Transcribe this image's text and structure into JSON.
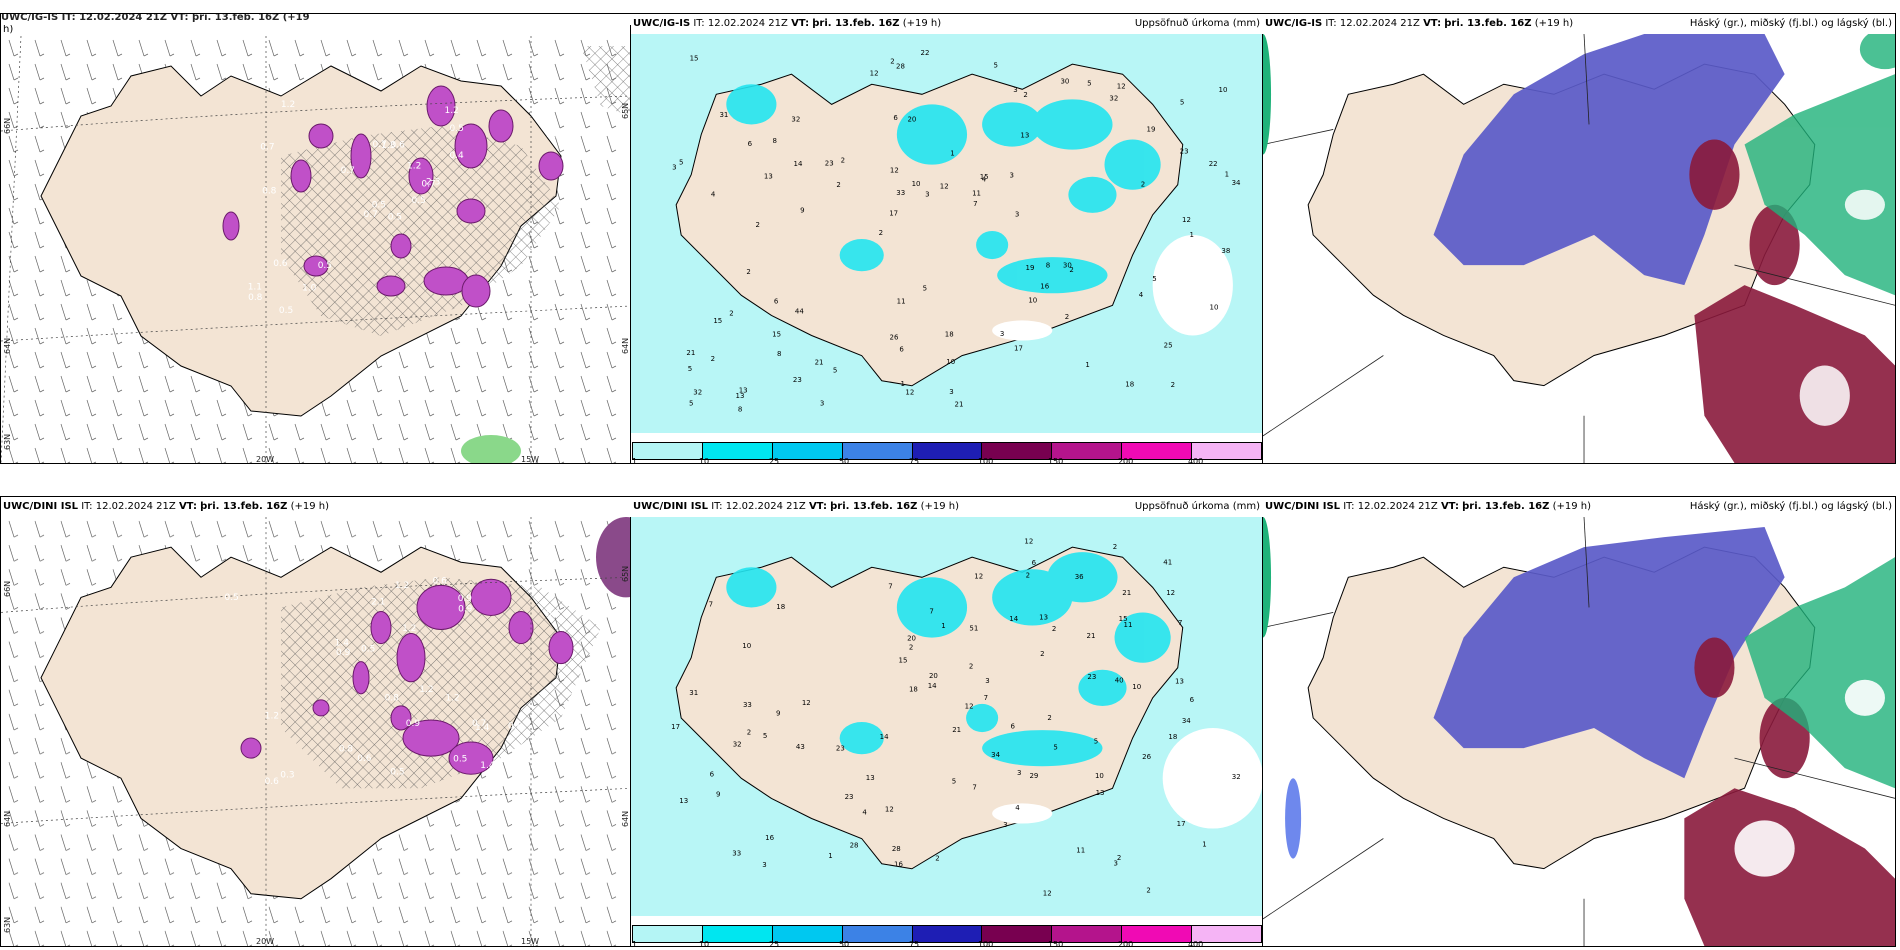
{
  "rows": [
    {
      "model": "UWC/IG-IS",
      "it_label": "IT:",
      "it_value": "12.02.2024 21Z",
      "vt_label": "VT:",
      "vt_value": "þri. 13.feb. 16Z",
      "lead": "(+19 h)",
      "left_header_fragment": "UWC/IG-IS  IT: 12.02.2024 21Z  VT: þri. 13.feb. 16Z  (+19",
      "left_header_wrap": "h)",
      "left_labels": {
        "lat1": "66N",
        "lat2": "64N",
        "lat3": "63N",
        "lon1": "20W",
        "lon2": "15W",
        "lon3": "25W",
        "edge": "65N",
        "edge2": "64N"
      },
      "left_values": [
        "0.5",
        "0.7",
        "0.5",
        "1.1",
        "0.7",
        "0.5",
        "1.2",
        "0.6",
        "0.5",
        "0.5",
        "1.2",
        "0.6",
        "0.8",
        "0.5",
        "0.7",
        "0.4",
        "0.5",
        "0.7",
        "1.2",
        "0.6",
        "0.7",
        "0.8",
        "1.0",
        "1.3",
        "2.3"
      ],
      "mid_values": [
        "2",
        "4",
        "5",
        "2",
        "13",
        "13",
        "6",
        "1",
        "2",
        "2",
        "5",
        "8",
        "20",
        "4",
        "2",
        "31",
        "28",
        "34",
        "19",
        "23",
        "17",
        "26",
        "33",
        "32",
        "30",
        "44",
        "18",
        "25",
        "30",
        "21",
        "23",
        "13",
        "10",
        "23",
        "22",
        "11",
        "32",
        "6",
        "7",
        "15",
        "19",
        "10",
        "16",
        "17",
        "15",
        "8",
        "5",
        "18",
        "12",
        "22",
        "9",
        "5",
        "8",
        "5",
        "13",
        "5",
        "12",
        "10",
        "10",
        "11",
        "5",
        "8",
        "14",
        "21",
        "15",
        "6",
        "38",
        "12",
        "10",
        "12",
        "2",
        "3",
        "5",
        "1",
        "2",
        "5",
        "1",
        "3",
        "3",
        "2",
        "1",
        "3",
        "2",
        "3",
        "4",
        "3",
        "12",
        "3",
        "2",
        "2",
        "3",
        "12",
        "1",
        "2",
        "6",
        "21",
        "15",
        "32",
        "2"
      ],
      "mid_right_title": "Uppsöfnuð úrkoma (mm)",
      "right_right_title": "Háský (gr.), miðský (fj.bl.) og lágský (bl.)"
    },
    {
      "model": "UWC/DINI ISL",
      "it_label": "IT:",
      "it_value": "12.02.2024 21Z",
      "vt_label": "VT:",
      "vt_value": "þri. 13.feb. 16Z",
      "lead": "(+19 h)",
      "left_labels": {
        "lat1": "66N",
        "lat2": "64N",
        "lat3": "63N",
        "lon1": "20W",
        "lon2": "15W",
        "lon3": "25W",
        "edge": "65N",
        "edge2": "64N"
      },
      "left_values": [
        "0.6",
        "0.8",
        "1.2",
        "0.9",
        "2.1",
        "0.6",
        "1.2",
        "0.9",
        "1.4",
        "0.8",
        "1.4",
        "0.9",
        "0.6",
        "1.2",
        "0.5",
        "1.4",
        "0.7",
        "1.2",
        "0.8",
        "0.5",
        "0.5",
        "0.3",
        "0.5",
        "1.2",
        "1.4",
        "0.9",
        "0.5",
        "1.2"
      ],
      "mid_values": [
        "2",
        "5",
        "3",
        "7",
        "17",
        "10",
        "16",
        "23",
        "21",
        "1",
        "2",
        "3",
        "4",
        "7",
        "6",
        "9",
        "5",
        "12",
        "31",
        "33",
        "41",
        "51",
        "40",
        "32",
        "34",
        "33",
        "43",
        "21",
        "14",
        "12",
        "29",
        "32",
        "23",
        "13",
        "20",
        "26",
        "18",
        "11",
        "21",
        "12",
        "13",
        "7",
        "28",
        "12",
        "14",
        "9",
        "7",
        "6",
        "14",
        "5",
        "5",
        "13",
        "10",
        "10",
        "15",
        "17",
        "16",
        "20",
        "34",
        "23",
        "28",
        "15",
        "18",
        "12",
        "13",
        "6",
        "12",
        "7",
        "36",
        "11",
        "13",
        "2",
        "3",
        "1",
        "2",
        "6",
        "7",
        "4",
        "2",
        "2",
        "2",
        "3",
        "2",
        "3",
        "2",
        "1",
        "2",
        "12",
        "18",
        "2"
      ],
      "mid_right_title": "Uppsöfnuð úrkoma (mm)",
      "right_right_title": "Háský (gr.), miðský (fj.bl.) og lágský (bl.)"
    }
  ],
  "colorbar": {
    "colors": [
      "#b4f5f5",
      "#00e6f0",
      "#00c8f0",
      "#3c82e6",
      "#1e1eb4",
      "#780050",
      "#b4148c",
      "#f00ab4",
      "#f5b4f5"
    ],
    "ticks": [
      "1",
      "10",
      "25",
      "50",
      "75",
      "100",
      "150",
      "200",
      "400"
    ]
  },
  "colors": {
    "land": "#f3e4d4",
    "sea_precip": "#b8f6f6",
    "precip_mid": "#22e4f0",
    "purple_precip": "#c050c8",
    "high_cloud_green": "#1fb27a",
    "mid_cloud_blue": "#5a5ac8",
    "low_cloud_red": "#8a1a3c"
  }
}
